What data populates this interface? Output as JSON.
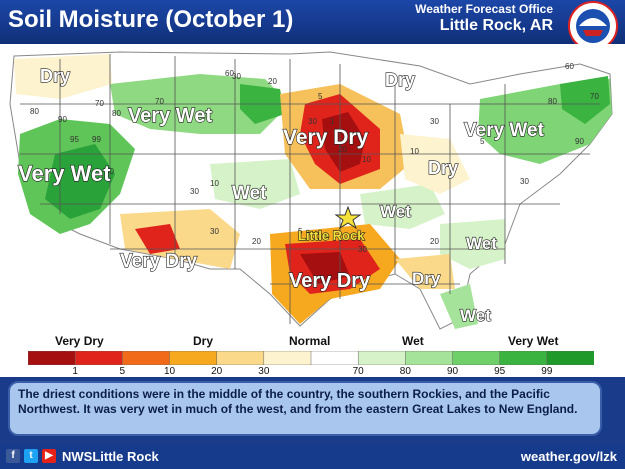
{
  "header": {
    "title": "Soil Moisture (October 1)",
    "office_line1": "Weather Forecast Office",
    "office_line2": "Little Rock, AR"
  },
  "map_labels": {
    "dry_nw": "Dry",
    "very_wet_north": "Very Wet",
    "very_wet_west": "Very Wet",
    "dry_north": "Dry",
    "very_dry_central": "Very Dry",
    "very_wet_ne": "Very Wet",
    "dry_east": "Dry",
    "wet_central": "Wet",
    "wet_ar": "Wet",
    "little_rock": "Little Rock",
    "wet_se": "Wet",
    "very_dry_sw": "Very Dry",
    "very_dry_south": "Very Dry",
    "dry_gulf": "Dry",
    "wet_fl": "Wet"
  },
  "contour_numbers": [
    "80",
    "70",
    "90",
    "95",
    "99",
    "80",
    "70",
    "60",
    "30",
    "80",
    "20",
    "10",
    "30",
    "5",
    "1",
    "20",
    "10",
    "5",
    "30",
    "30",
    "80",
    "70",
    "90",
    "30",
    "5",
    "10",
    "30",
    "20",
    "30",
    "20",
    "60"
  ],
  "legend": {
    "categories": [
      "Very Dry",
      "Dry",
      "Normal",
      "Wet",
      "Very Wet"
    ],
    "ticks": [
      "1",
      "5",
      "10",
      "20",
      "30",
      "70",
      "80",
      "90",
      "95",
      "99"
    ],
    "colors": [
      "#a50f0f",
      "#e0241c",
      "#f06a1a",
      "#f6a81e",
      "#fbd98a",
      "#fdf3cf",
      "#ffffff",
      "#d6f2c8",
      "#a6e39a",
      "#6fcf69",
      "#3bb340",
      "#1f9a2a"
    ]
  },
  "caption": "The driest conditions were in the middle of the country, the southern Rockies, and the Pacific Northwest. It was very wet in much of the west, and from the eastern Great Lakes to New England.",
  "footer": {
    "handle": "NWSLittle Rock",
    "website": "weather.gov/lzk",
    "icons": [
      "facebook-icon",
      "twitter-icon",
      "youtube-icon"
    ]
  }
}
